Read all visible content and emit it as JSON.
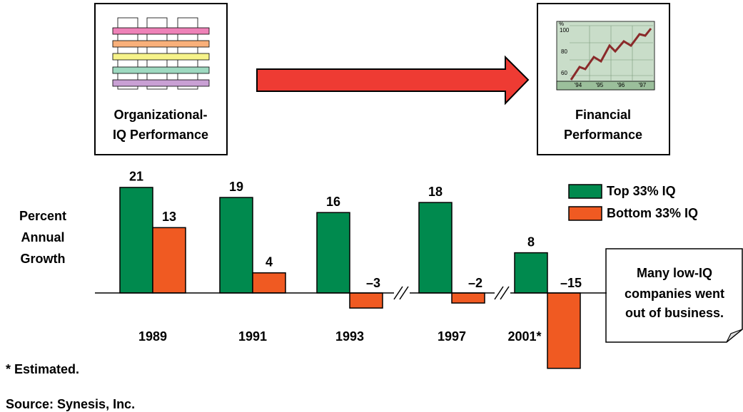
{
  "chart_data": {
    "type": "bar",
    "categories": [
      "1989",
      "1991",
      "1993",
      "1997",
      "2001*"
    ],
    "series": [
      {
        "name": "Top 33% IQ",
        "color": "#008a4e",
        "values": [
          21,
          19,
          16,
          18,
          8
        ]
      },
      {
        "name": "Bottom 33% IQ",
        "color": "#f05a22",
        "values": [
          13,
          4,
          -3,
          -2,
          -15
        ],
        "value_labels": [
          "13",
          "4",
          "–3",
          "–2",
          "–15"
        ]
      }
    ],
    "ylabel": [
      "Percent",
      "Annual",
      "Growth"
    ],
    "annotation": [
      "Many low-IQ",
      "companies went",
      "out of business."
    ],
    "footnotes": [
      "* Estimated.",
      "Source: Synesis, Inc."
    ]
  },
  "diagram": {
    "source": {
      "label": [
        "Organizational-",
        "IQ Performance"
      ]
    },
    "target": {
      "label": [
        "Financial",
        "Performance"
      ]
    },
    "icon": {
      "unit": "%",
      "yticks": [
        100,
        80,
        60
      ],
      "xticks": [
        "'94",
        "'95",
        "'96",
        "'97"
      ]
    }
  }
}
